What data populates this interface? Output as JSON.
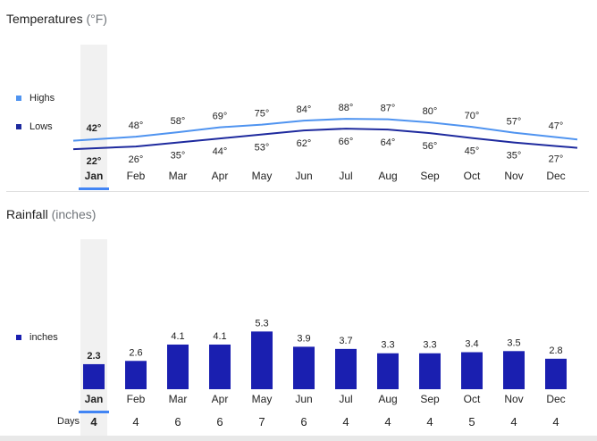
{
  "temperatures": {
    "title": "Temperatures",
    "unit": "(°F)",
    "legend": [
      {
        "label": "Highs",
        "color": "#5094f0"
      },
      {
        "label": "Lows",
        "color": "#1e2a9e"
      }
    ]
  },
  "rainfall": {
    "title": "Rainfall",
    "unit": "(inches)",
    "legend": [
      {
        "label": "inches",
        "color": "#1a1fb0"
      }
    ],
    "days_label": "Days"
  },
  "selected_month": "Jan",
  "chart_data": [
    {
      "type": "line",
      "title": "Temperatures (°F)",
      "categories": [
        "Jan",
        "Feb",
        "Mar",
        "Apr",
        "May",
        "Jun",
        "Jul",
        "Aug",
        "Sep",
        "Oct",
        "Nov",
        "Dec"
      ],
      "series": [
        {
          "name": "Highs",
          "values": [
            42,
            48,
            58,
            69,
            75,
            84,
            88,
            87,
            80,
            70,
            57,
            47
          ],
          "color": "#5094f0"
        },
        {
          "name": "Lows",
          "values": [
            22,
            26,
            35,
            44,
            53,
            62,
            66,
            64,
            56,
            45,
            35,
            27
          ],
          "color": "#1e2a9e"
        }
      ],
      "label_suffix": "°"
    },
    {
      "type": "bar",
      "title": "Rainfall (inches)",
      "categories": [
        "Jan",
        "Feb",
        "Mar",
        "Apr",
        "May",
        "Jun",
        "Jul",
        "Aug",
        "Sep",
        "Oct",
        "Nov",
        "Dec"
      ],
      "series": [
        {
          "name": "inches",
          "values": [
            2.3,
            2.6,
            4.1,
            4.1,
            5.3,
            3.9,
            3.7,
            3.3,
            3.3,
            3.4,
            3.5,
            2.8
          ],
          "color": "#1a1fb0"
        }
      ],
      "days": [
        4,
        4,
        6,
        6,
        7,
        6,
        4,
        4,
        4,
        5,
        4,
        4
      ]
    }
  ]
}
